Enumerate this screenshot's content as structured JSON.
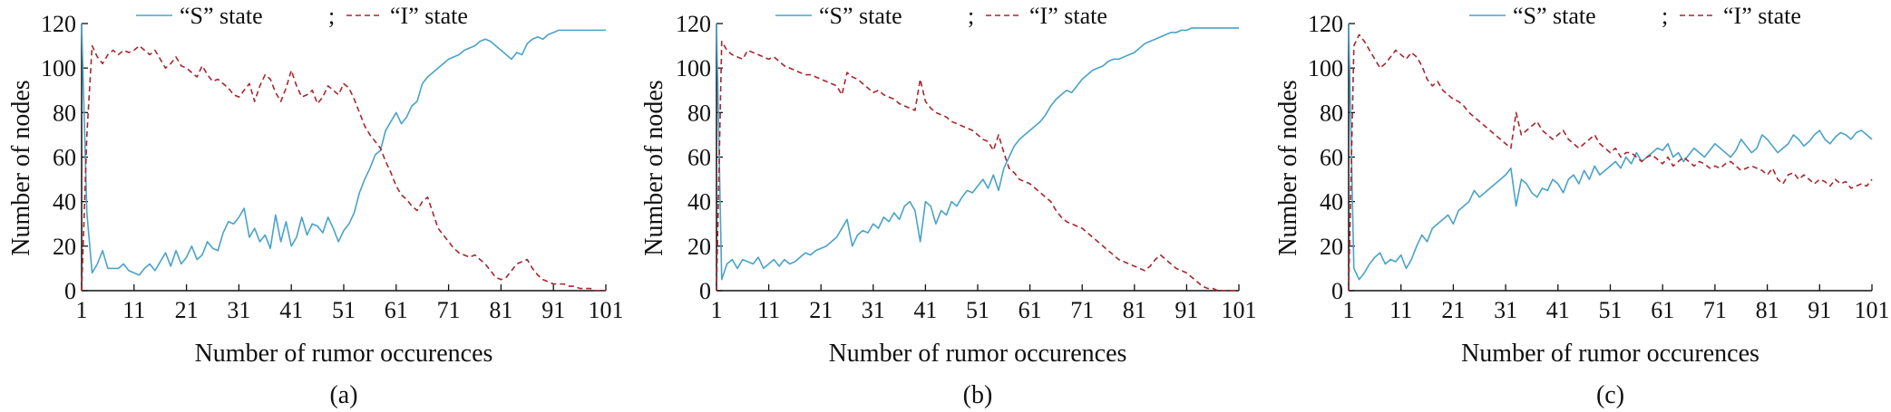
{
  "colors": {
    "s_state": "#4aa3c8",
    "i_state": "#a8262e"
  },
  "chart_data": [
    {
      "type": "line",
      "caption": "(a)",
      "xlabel": "Number of rumor occurences",
      "ylabel": "Number of nodes",
      "xticks": [
        1,
        11,
        21,
        31,
        41,
        51,
        61,
        71,
        81,
        91,
        101
      ],
      "yticks": [
        0,
        20,
        40,
        60,
        80,
        100,
        120
      ],
      "xlim": [
        1,
        101
      ],
      "ylim": [
        0,
        120
      ],
      "legend_placement": "top-center",
      "series": [
        {
          "name": "“S” state",
          "style": "solid",
          "values": [
            120,
            35,
            8,
            12,
            18,
            10,
            10,
            10,
            12,
            9,
            8,
            7,
            10,
            12,
            9,
            13,
            17,
            11,
            18,
            12,
            15,
            20,
            14,
            16,
            22,
            19,
            18,
            26,
            31,
            30,
            33,
            37,
            24,
            28,
            22,
            25,
            19,
            34,
            22,
            31,
            20,
            24,
            33,
            25,
            30,
            29,
            26,
            33,
            28,
            22,
            27,
            30,
            35,
            44,
            50,
            55,
            61,
            63,
            72,
            76,
            80,
            75,
            78,
            83,
            85,
            93,
            96,
            98,
            100,
            102,
            104,
            105,
            106,
            108,
            109,
            110,
            112,
            113,
            112,
            110,
            108,
            106,
            104,
            107,
            106,
            111,
            113,
            114,
            113,
            115,
            116,
            117,
            117,
            117,
            117,
            117,
            117,
            117,
            117,
            117,
            117
          ]
        },
        {
          "name": "“I” state",
          "style": "dashed",
          "values": [
            0,
            70,
            110,
            105,
            102,
            106,
            108,
            106,
            108,
            107,
            108,
            110,
            108,
            106,
            108,
            104,
            100,
            102,
            105,
            101,
            100,
            98,
            96,
            101,
            97,
            94,
            95,
            93,
            91,
            88,
            87,
            90,
            93,
            85,
            92,
            97,
            95,
            89,
            85,
            91,
            99,
            92,
            87,
            88,
            90,
            84,
            87,
            92,
            90,
            88,
            93,
            91,
            86,
            80,
            74,
            70,
            67,
            64,
            58,
            53,
            47,
            43,
            41,
            38,
            36,
            40,
            42,
            35,
            28,
            25,
            22,
            19,
            17,
            16,
            15,
            16,
            14,
            12,
            9,
            6,
            5,
            6,
            9,
            12,
            13,
            14,
            10,
            7,
            5,
            4,
            3,
            3,
            3,
            2,
            2,
            1,
            1,
            1,
            0,
            0,
            0
          ]
        }
      ]
    },
    {
      "type": "line",
      "caption": "(b)",
      "xlabel": "Number of rumor occurences",
      "ylabel": "Number of nodes",
      "xticks": [
        1,
        11,
        21,
        31,
        41,
        51,
        61,
        71,
        81,
        91,
        101
      ],
      "yticks": [
        0,
        20,
        40,
        60,
        80,
        100,
        120
      ],
      "xlim": [
        1,
        101
      ],
      "ylim": [
        0,
        120
      ],
      "legend_placement": "top-center",
      "series": [
        {
          "name": "“S” state",
          "style": "solid",
          "values": [
            120,
            5,
            12,
            14,
            10,
            14,
            13,
            12,
            15,
            10,
            12,
            14,
            11,
            14,
            12,
            13,
            15,
            17,
            16,
            18,
            19,
            20,
            22,
            24,
            28,
            32,
            20,
            25,
            27,
            26,
            30,
            28,
            33,
            31,
            35,
            32,
            38,
            40,
            36,
            22,
            40,
            38,
            30,
            36,
            34,
            40,
            38,
            42,
            45,
            44,
            47,
            50,
            46,
            52,
            45,
            55,
            60,
            65,
            68,
            70,
            72,
            74,
            76,
            79,
            83,
            86,
            88,
            90,
            89,
            92,
            95,
            97,
            99,
            100,
            101,
            103,
            104,
            104,
            105,
            106,
            107,
            109,
            111,
            112,
            113,
            114,
            115,
            116,
            116,
            117,
            117,
            118,
            118,
            118,
            118,
            118,
            118,
            118,
            118,
            118,
            118
          ]
        },
        {
          "name": "“I” state",
          "style": "dashed",
          "values": [
            0,
            112,
            108,
            106,
            105,
            104,
            108,
            107,
            106,
            105,
            104,
            105,
            103,
            101,
            100,
            99,
            98,
            97,
            97,
            96,
            95,
            94,
            93,
            92,
            88,
            98,
            96,
            95,
            93,
            91,
            89,
            90,
            88,
            87,
            86,
            84,
            83,
            82,
            81,
            95,
            85,
            82,
            80,
            79,
            78,
            76,
            75,
            74,
            73,
            72,
            70,
            68,
            67,
            63,
            70,
            62,
            55,
            53,
            50,
            49,
            48,
            46,
            44,
            42,
            40,
            36,
            33,
            31,
            30,
            29,
            28,
            26,
            24,
            22,
            20,
            18,
            16,
            14,
            13,
            12,
            11,
            10,
            9,
            11,
            14,
            16,
            14,
            12,
            10,
            9,
            8,
            6,
            4,
            2,
            1,
            1,
            0,
            0,
            0,
            0,
            0
          ]
        }
      ]
    },
    {
      "type": "line",
      "caption": "(c)",
      "xlabel": "Number of rumor occurences",
      "ylabel": "Number of nodes",
      "xticks": [
        1,
        11,
        21,
        31,
        41,
        51,
        61,
        71,
        81,
        91,
        101
      ],
      "yticks": [
        0,
        20,
        40,
        60,
        80,
        100,
        120
      ],
      "xlim": [
        1,
        101
      ],
      "ylim": [
        0,
        120
      ],
      "legend_placement": "top-right",
      "series": [
        {
          "name": "“S” state",
          "style": "solid",
          "values": [
            120,
            10,
            5,
            8,
            12,
            15,
            17,
            12,
            14,
            13,
            16,
            10,
            14,
            20,
            25,
            22,
            28,
            30,
            32,
            34,
            30,
            36,
            38,
            40,
            45,
            42,
            44,
            46,
            48,
            50,
            52,
            55,
            38,
            50,
            48,
            44,
            42,
            46,
            45,
            50,
            48,
            44,
            50,
            52,
            48,
            54,
            50,
            56,
            52,
            54,
            56,
            58,
            55,
            60,
            57,
            62,
            58,
            60,
            62,
            64,
            63,
            66,
            60,
            62,
            58,
            61,
            64,
            62,
            60,
            63,
            66,
            64,
            62,
            60,
            63,
            68,
            65,
            62,
            64,
            70,
            68,
            65,
            62,
            64,
            66,
            70,
            68,
            65,
            67,
            70,
            72,
            68,
            66,
            69,
            71,
            70,
            68,
            71,
            72,
            70,
            68
          ]
        },
        {
          "name": "“I” state",
          "style": "dashed",
          "values": [
            0,
            110,
            115,
            112,
            108,
            104,
            100,
            102,
            105,
            108,
            106,
            104,
            107,
            105,
            101,
            95,
            92,
            94,
            90,
            88,
            86,
            85,
            83,
            80,
            78,
            76,
            74,
            72,
            70,
            68,
            66,
            64,
            80,
            70,
            72,
            74,
            76,
            72,
            70,
            68,
            70,
            72,
            68,
            66,
            64,
            66,
            68,
            70,
            66,
            64,
            62,
            64,
            60,
            62,
            62,
            60,
            58,
            60,
            61,
            59,
            57,
            60,
            56,
            58,
            60,
            58,
            56,
            58,
            57,
            55,
            56,
            55,
            57,
            58,
            56,
            54,
            55,
            56,
            55,
            54,
            52,
            55,
            50,
            48,
            52,
            53,
            50,
            52,
            50,
            48,
            50,
            49,
            47,
            50,
            48,
            49,
            46,
            47,
            48,
            47,
            50
          ]
        }
      ]
    }
  ]
}
